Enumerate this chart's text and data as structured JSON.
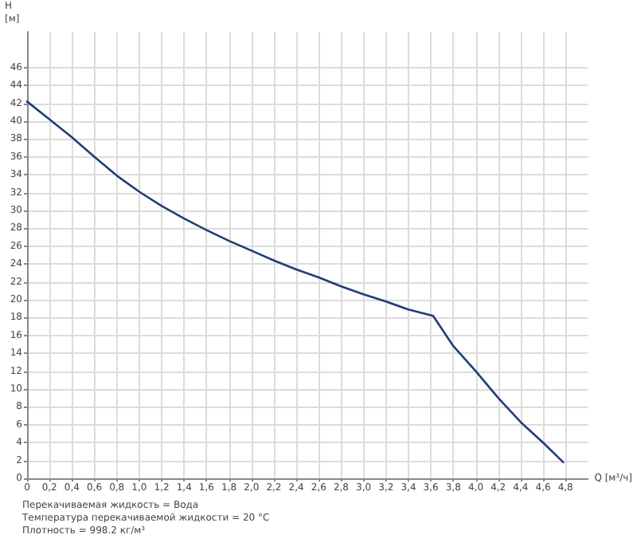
{
  "chart_data": {
    "type": "line",
    "xlabel": "Q [м³/ч]",
    "ylabel": "H\n[м]",
    "series": [
      {
        "color": "#1f3f73",
        "x": [
          0,
          0.2,
          0.4,
          0.6,
          0.8,
          1.0,
          1.2,
          1.4,
          1.6,
          1.8,
          2.0,
          2.2,
          2.4,
          2.6,
          2.8,
          3.0,
          3.2,
          3.4,
          3.62,
          3.8,
          4.0,
          4.2,
          4.4,
          4.6,
          4.78
        ],
        "values": [
          42.2,
          40.2,
          38.2,
          36.0,
          33.9,
          32.1,
          30.5,
          29.1,
          27.8,
          26.6,
          25.5,
          24.4,
          23.4,
          22.5,
          21.5,
          20.6,
          19.8,
          18.9,
          18.2,
          14.8,
          12.0,
          9.0,
          6.3,
          4.0,
          1.8
        ]
      }
    ],
    "xlim": [
      0,
      5
    ],
    "xticks": [
      0,
      {
        "value": 0.2,
        "label": "0,2"
      },
      {
        "value": 0.4,
        "label": "0,4"
      },
      {
        "value": 0.6,
        "label": "0,6"
      },
      {
        "value": 0.8,
        "label": "0,8"
      },
      {
        "value": 1.0,
        "label": "1,0"
      },
      {
        "value": 1.2,
        "label": "1,2"
      },
      {
        "value": 1.4,
        "label": "1,4"
      },
      {
        "value": 1.6,
        "label": "1,6"
      },
      {
        "value": 1.8,
        "label": "1,8"
      },
      {
        "value": 2.0,
        "label": "2,0"
      },
      {
        "value": 2.2,
        "label": "2,2"
      },
      {
        "value": 2.4,
        "label": "2,4"
      },
      {
        "value": 2.6,
        "label": "2,6"
      },
      {
        "value": 2.8,
        "label": "2,8"
      },
      {
        "value": 3.0,
        "label": "3,0"
      },
      {
        "value": 3.2,
        "label": "3,2"
      },
      {
        "value": 3.4,
        "label": "3,4"
      },
      {
        "value": 3.6,
        "label": "3,6"
      },
      {
        "value": 3.8,
        "label": "3,8"
      },
      {
        "value": 4.0,
        "label": "4,0"
      },
      {
        "value": 4.2,
        "label": "4,2"
      },
      {
        "value": 4.4,
        "label": "4,4"
      },
      {
        "value": 4.6,
        "label": "4,6"
      },
      {
        "value": 4.8,
        "label": "4,8"
      }
    ],
    "ylim": [
      0,
      50
    ],
    "yticks": [
      0,
      2,
      4,
      6,
      8,
      10,
      12,
      14,
      16,
      18,
      20,
      22,
      24,
      26,
      28,
      30,
      32,
      34,
      36,
      38,
      40,
      42,
      44,
      46
    ],
    "grid": true,
    "marker": "none",
    "line_style": "solid",
    "annotations": [
      "Перекачиваемая жидкость = Вода",
      "Температура перекачиваемой жидкости = 20 °C",
      "Плотность = 998.2 кг/м³"
    ]
  }
}
